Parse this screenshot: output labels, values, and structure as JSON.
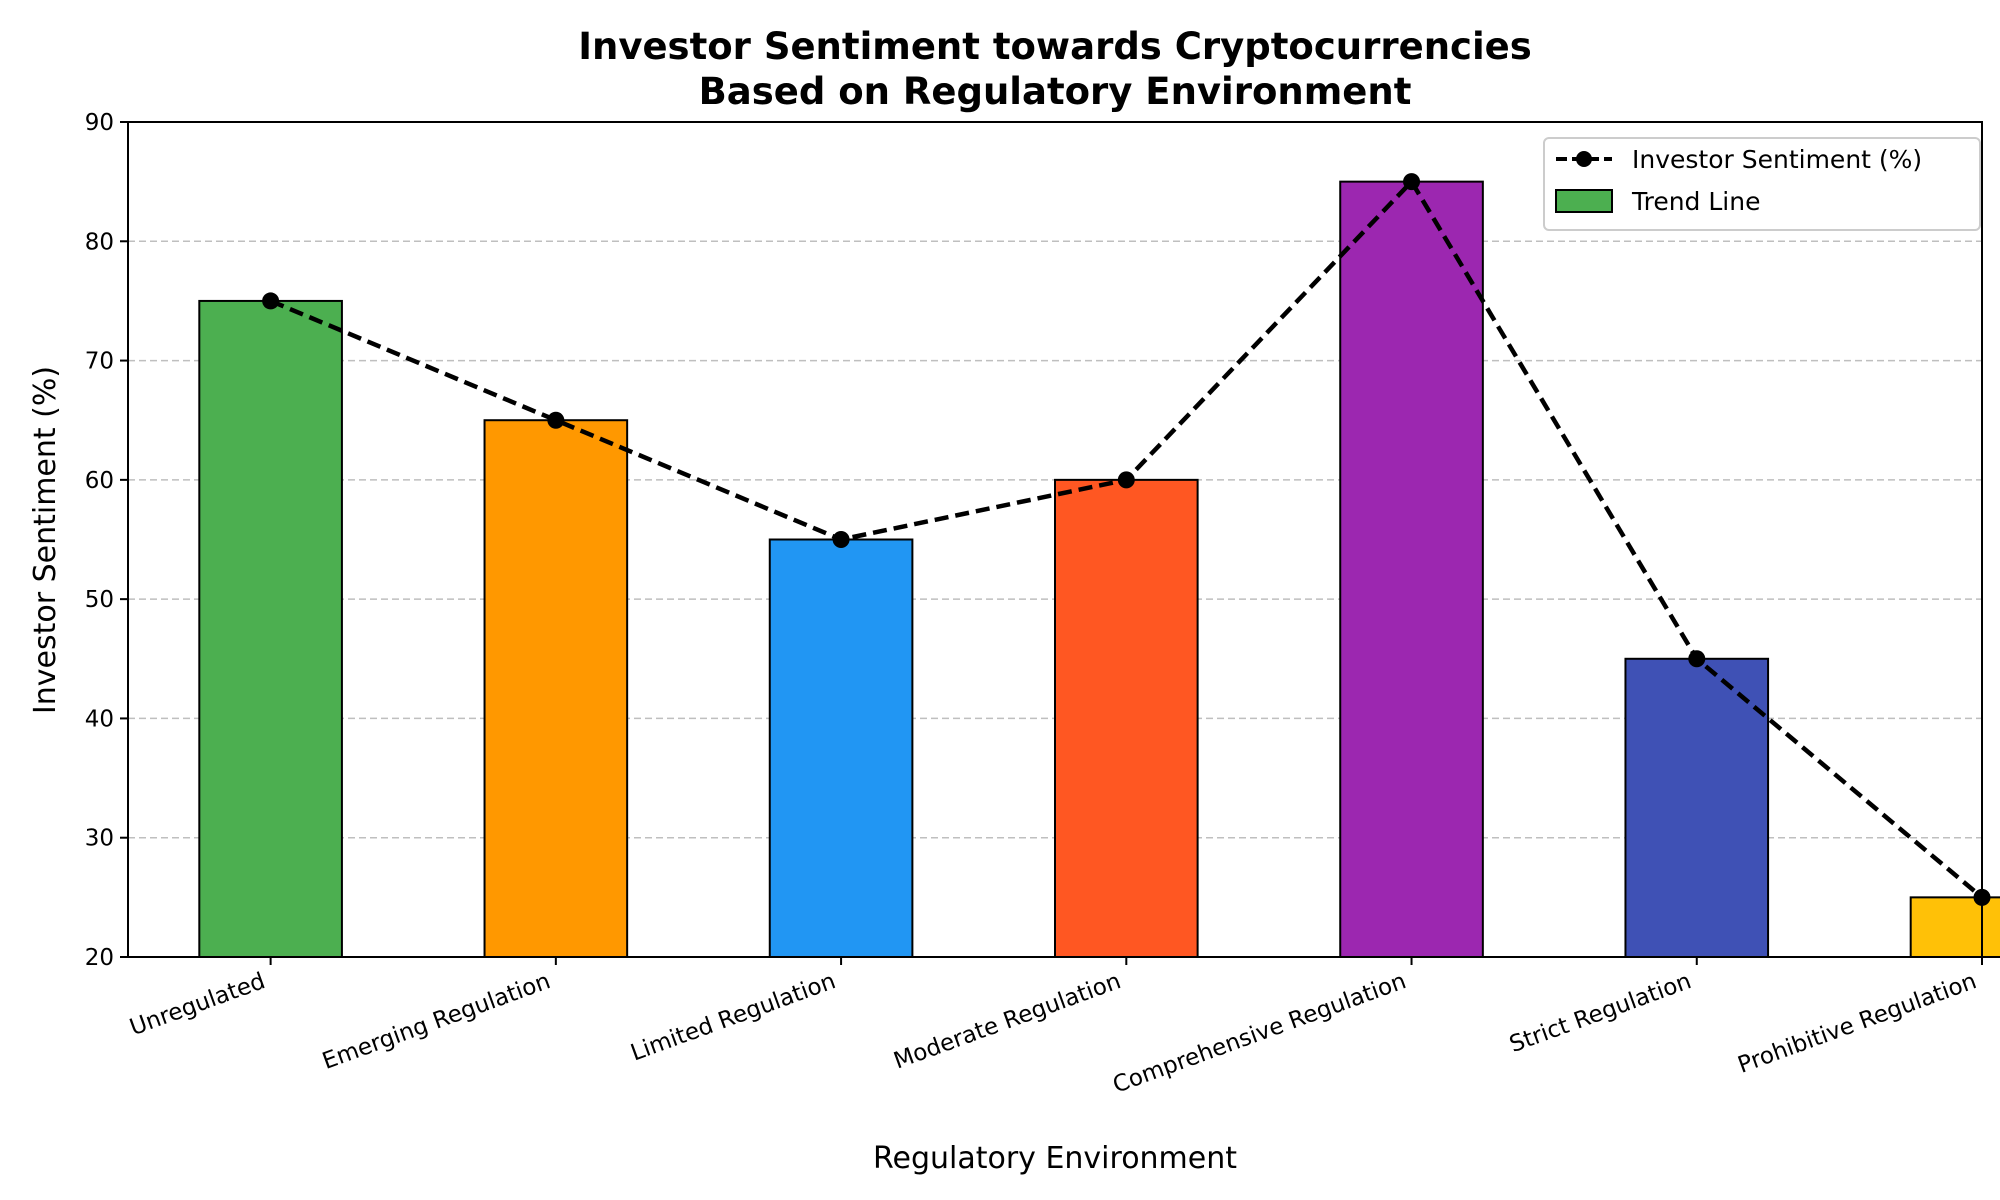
{
  "chart_data": {
    "type": "bar",
    "title_line1": "Investor Sentiment towards Cryptocurrencies",
    "title_line2": "Based on Regulatory Environment",
    "xlabel": "Regulatory Environment",
    "ylabel": "Investor Sentiment (%)",
    "ylim": [
      20,
      90
    ],
    "yticks": [
      20,
      30,
      40,
      50,
      60,
      70,
      80,
      90
    ],
    "grid": "y-dashed",
    "categories": [
      "Unregulated",
      "Emerging Regulation",
      "Limited Regulation",
      "Moderate Regulation",
      "Comprehensive Regulation",
      "Strict Regulation",
      "Prohibitive Regulation"
    ],
    "values": [
      75,
      65,
      55,
      60,
      85,
      45,
      25
    ],
    "bar_colors": [
      "#4caf50",
      "#ff9800",
      "#2196f3",
      "#ff5722",
      "#9c27b0",
      "#3f51b5",
      "#ffc107"
    ],
    "line": {
      "values": [
        75,
        65,
        55,
        60,
        85,
        45,
        25
      ],
      "color": "#000000",
      "style": "dashed",
      "marker": "circle"
    },
    "legend": {
      "placement": "top-right",
      "entries": [
        {
          "label": "Investor Sentiment (%)",
          "kind": "line"
        },
        {
          "label": "Trend Line",
          "kind": "patch",
          "color": "#4caf50"
        }
      ]
    }
  }
}
